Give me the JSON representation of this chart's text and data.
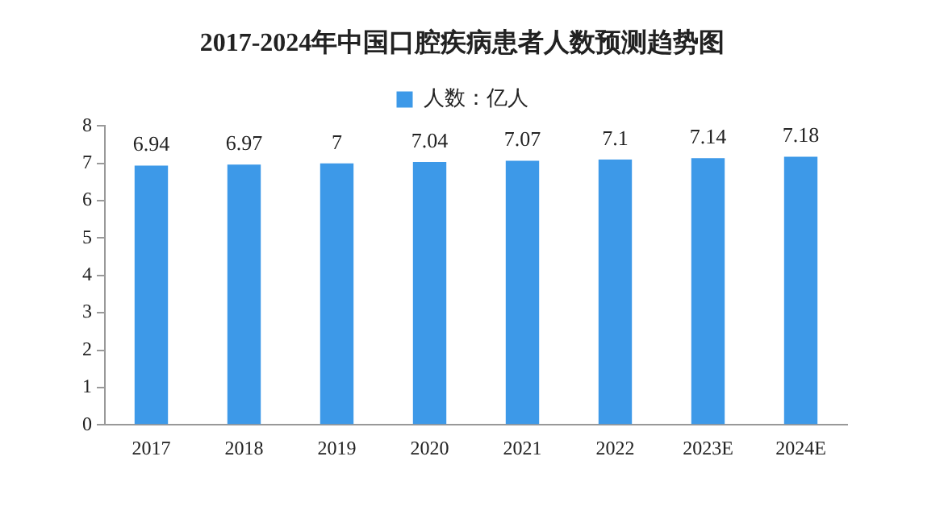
{
  "chart_data": {
    "type": "bar",
    "title": "2017-2024年中国口腔疾病患者人数预测趋势图",
    "categories": [
      "2017",
      "2018",
      "2019",
      "2020",
      "2021",
      "2022",
      "2023E",
      "2024E"
    ],
    "series": [
      {
        "name": "人数：亿人",
        "color": "#3d99e8",
        "values": [
          6.94,
          6.97,
          7,
          7.04,
          7.07,
          7.1,
          7.14,
          7.18
        ]
      }
    ],
    "ylim": [
      0,
      8
    ],
    "yticks": [
      0,
      1,
      2,
      3,
      4,
      5,
      6,
      7,
      8
    ],
    "grid": false,
    "legend": "top",
    "data_labels": true
  }
}
